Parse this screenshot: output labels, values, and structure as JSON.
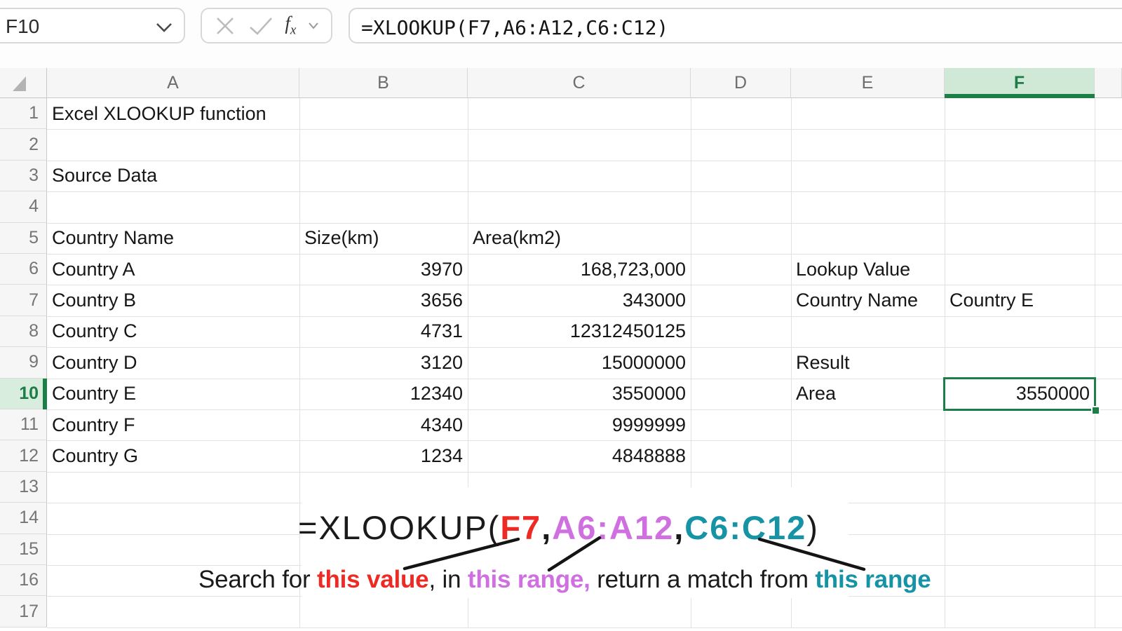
{
  "formula_bar": {
    "name_box_value": "F10",
    "cancel_icon": "cancel-x",
    "confirm_icon": "checkmark",
    "fx_label_f": "f",
    "fx_label_x": "x",
    "formula": "=XLOOKUP(F7,A6:A12,C6:C12)"
  },
  "grid": {
    "column_headers": [
      "A",
      "B",
      "C",
      "D",
      "E",
      "F"
    ],
    "row_headers": [
      "1",
      "2",
      "3",
      "4",
      "5",
      "6",
      "7",
      "8",
      "9",
      "10",
      "11",
      "12",
      "13",
      "14",
      "15",
      "16",
      "17"
    ],
    "selected_cell": "F10",
    "selected_column": "F",
    "selected_row": "10",
    "cells": [
      {
        "ref": "A1",
        "col": "A",
        "row": 1,
        "text": "Excel XLOOKUP function",
        "align": "left"
      },
      {
        "ref": "A3",
        "col": "A",
        "row": 3,
        "text": "Source Data",
        "align": "left"
      },
      {
        "ref": "A5",
        "col": "A",
        "row": 5,
        "text": "Country Name",
        "align": "left"
      },
      {
        "ref": "B5",
        "col": "B",
        "row": 5,
        "text": "Size(km)",
        "align": "left"
      },
      {
        "ref": "C5",
        "col": "C",
        "row": 5,
        "text": "Area(km2)",
        "align": "left"
      },
      {
        "ref": "A6",
        "col": "A",
        "row": 6,
        "text": "Country A",
        "align": "left"
      },
      {
        "ref": "B6",
        "col": "B",
        "row": 6,
        "text": "3970",
        "align": "right"
      },
      {
        "ref": "C6",
        "col": "C",
        "row": 6,
        "text": "168,723,000",
        "align": "right"
      },
      {
        "ref": "E6",
        "col": "E",
        "row": 6,
        "text": "Lookup Value",
        "align": "left"
      },
      {
        "ref": "A7",
        "col": "A",
        "row": 7,
        "text": "Country B",
        "align": "left"
      },
      {
        "ref": "B7",
        "col": "B",
        "row": 7,
        "text": "3656",
        "align": "right"
      },
      {
        "ref": "C7",
        "col": "C",
        "row": 7,
        "text": "343000",
        "align": "right"
      },
      {
        "ref": "E7",
        "col": "E",
        "row": 7,
        "text": "Country Name",
        "align": "left"
      },
      {
        "ref": "F7",
        "col": "F",
        "row": 7,
        "text": "Country E",
        "align": "left"
      },
      {
        "ref": "A8",
        "col": "A",
        "row": 8,
        "text": "Country C",
        "align": "left"
      },
      {
        "ref": "B8",
        "col": "B",
        "row": 8,
        "text": "4731",
        "align": "right"
      },
      {
        "ref": "C8",
        "col": "C",
        "row": 8,
        "text": "12312450125",
        "align": "right"
      },
      {
        "ref": "A9",
        "col": "A",
        "row": 9,
        "text": "Country D",
        "align": "left"
      },
      {
        "ref": "B9",
        "col": "B",
        "row": 9,
        "text": "3120",
        "align": "right"
      },
      {
        "ref": "C9",
        "col": "C",
        "row": 9,
        "text": "15000000",
        "align": "right"
      },
      {
        "ref": "E9",
        "col": "E",
        "row": 9,
        "text": "Result",
        "align": "left"
      },
      {
        "ref": "A10",
        "col": "A",
        "row": 10,
        "text": "Country E",
        "align": "left"
      },
      {
        "ref": "B10",
        "col": "B",
        "row": 10,
        "text": "12340",
        "align": "right"
      },
      {
        "ref": "C10",
        "col": "C",
        "row": 10,
        "text": "3550000",
        "align": "right"
      },
      {
        "ref": "E10",
        "col": "E",
        "row": 10,
        "text": "Area",
        "align": "left"
      },
      {
        "ref": "F10",
        "col": "F",
        "row": 10,
        "text": "3550000",
        "align": "right"
      },
      {
        "ref": "A11",
        "col": "A",
        "row": 11,
        "text": "Country F",
        "align": "left"
      },
      {
        "ref": "B11",
        "col": "B",
        "row": 11,
        "text": "4340",
        "align": "right"
      },
      {
        "ref": "C11",
        "col": "C",
        "row": 11,
        "text": "9999999",
        "align": "right"
      },
      {
        "ref": "A12",
        "col": "A",
        "row": 12,
        "text": "Country G",
        "align": "left"
      },
      {
        "ref": "B12",
        "col": "B",
        "row": 12,
        "text": "1234",
        "align": "right"
      },
      {
        "ref": "C12",
        "col": "C",
        "row": 12,
        "text": "4848888",
        "align": "right"
      }
    ]
  },
  "annotation": {
    "formula_parts": [
      {
        "text": "=XLOOKUP(",
        "color": "#1a1a1a",
        "bold": false
      },
      {
        "text": "F7",
        "color": "#ee2a24",
        "bold": true
      },
      {
        "text": ",",
        "color": "#1a1a1a",
        "bold": true
      },
      {
        "text": "A6:A12",
        "color": "#cf6fe0",
        "bold": true
      },
      {
        "text": ",",
        "color": "#1a1a1a",
        "bold": true
      },
      {
        "text": "C6:C12",
        "color": "#1693a5",
        "bold": true
      },
      {
        "text": ")",
        "color": "#1a1a1a",
        "bold": false
      }
    ],
    "caption_parts": [
      {
        "text": "Search for ",
        "color": "#1a1a1a",
        "bold": false
      },
      {
        "text": "this value",
        "color": "#ee2a24",
        "bold": true
      },
      {
        "text": ", in ",
        "color": "#1a1a1a",
        "bold": false
      },
      {
        "text": "this range,",
        "color": "#cf6fe0",
        "bold": true
      },
      {
        "text": " return a match from ",
        "color": "#1a1a1a",
        "bold": false
      },
      {
        "text": "this range",
        "color": "#1693a5",
        "bold": true
      }
    ]
  },
  "colors": {
    "selection_green": "#1b7f47",
    "selected_column_header_bg": "#cfe9d6",
    "selected_row_header_bg": "#d9edde",
    "annotation_red": "#ee2a24",
    "annotation_purple": "#cf6fe0",
    "annotation_teal": "#1693a5",
    "gridline": "#e2e2e2"
  }
}
